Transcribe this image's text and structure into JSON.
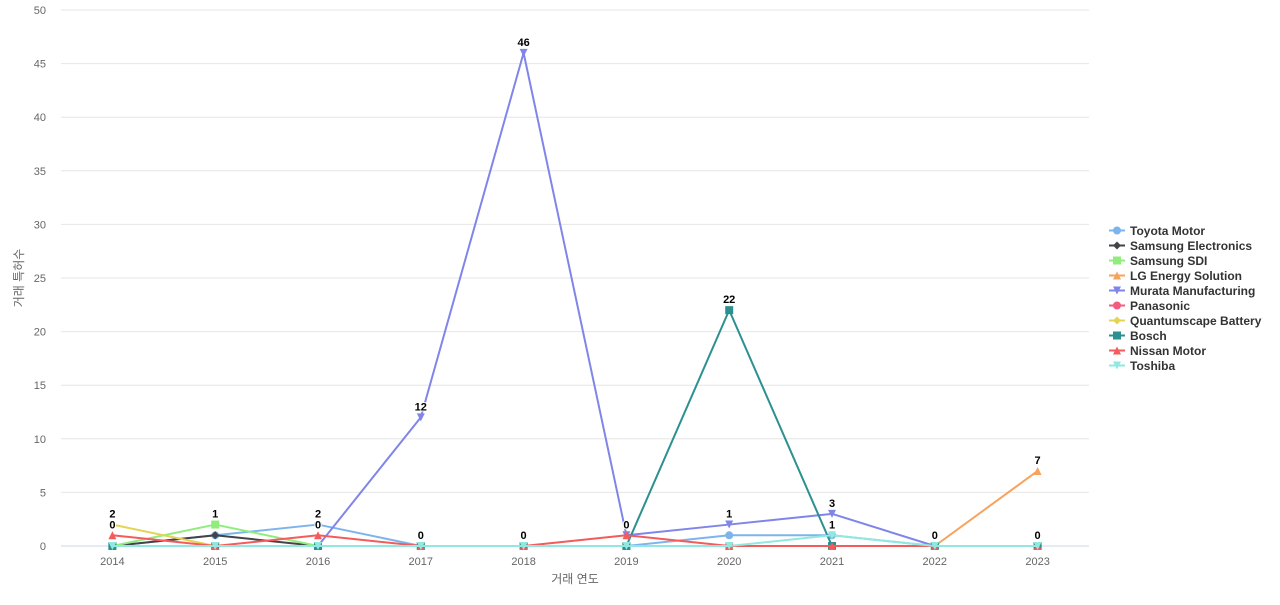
{
  "chart_data": {
    "type": "line",
    "title": "",
    "xlabel": "거래 연도",
    "ylabel": "거래 특허수",
    "x": [
      "2014",
      "2015",
      "2016",
      "2017",
      "2018",
      "2019",
      "2020",
      "2021",
      "2022",
      "2023"
    ],
    "ylim": [
      0,
      50
    ],
    "yticks": [
      0,
      5,
      10,
      15,
      20,
      25,
      30,
      35,
      40,
      45,
      50
    ],
    "grid": true,
    "legend_position": "right",
    "series": [
      {
        "name": "Toyota Motor",
        "color": "#7cb5ec",
        "marker": "circle",
        "values": [
          0,
          1,
          2,
          0,
          0,
          0,
          1,
          1,
          0,
          0
        ]
      },
      {
        "name": "Samsung Electronics",
        "color": "#434348",
        "marker": "diamond",
        "values": [
          0,
          1,
          0,
          0,
          0,
          0,
          0,
          0,
          0,
          0
        ]
      },
      {
        "name": "Samsung SDI",
        "color": "#90ed7d",
        "marker": "square",
        "values": [
          0,
          2,
          0,
          0,
          0,
          0,
          0,
          0,
          0,
          0
        ]
      },
      {
        "name": "LG Energy Solution",
        "color": "#f7a35c",
        "marker": "triangle",
        "values": [
          0,
          0,
          0,
          0,
          0,
          0,
          0,
          0,
          0,
          7
        ]
      },
      {
        "name": "Murata Manufacturing",
        "color": "#8085e9",
        "marker": "triangle-down",
        "values": [
          0,
          0,
          0,
          12,
          46,
          1,
          2,
          3,
          0,
          0
        ]
      },
      {
        "name": "Panasonic",
        "color": "#f15c80",
        "marker": "circle",
        "values": [
          0,
          0,
          0,
          0,
          0,
          0,
          0,
          0,
          0,
          0
        ]
      },
      {
        "name": "Quantumscape Battery",
        "color": "#e4d354",
        "marker": "diamond",
        "values": [
          2,
          0,
          0,
          0,
          0,
          0,
          0,
          0,
          0,
          0
        ]
      },
      {
        "name": "Bosch",
        "color": "#2b908f",
        "marker": "square",
        "values": [
          0,
          0,
          0,
          0,
          0,
          0,
          22,
          0,
          0,
          0
        ]
      },
      {
        "name": "Nissan Motor",
        "color": "#f45b5b",
        "marker": "triangle",
        "values": [
          1,
          0,
          1,
          0,
          0,
          1,
          0,
          0,
          0,
          0
        ]
      },
      {
        "name": "Toshiba",
        "color": "#91e8e1",
        "marker": "triangle-down",
        "values": [
          0,
          0,
          0,
          0,
          0,
          0,
          0,
          1,
          0,
          0
        ]
      }
    ],
    "data_labels": [
      {
        "x": "2014",
        "text": "2",
        "y": 2
      },
      {
        "x": "2014",
        "text": "0",
        "y": 1
      },
      {
        "x": "2015",
        "text": "1",
        "y": 2
      },
      {
        "x": "2016",
        "text": "2",
        "y": 2
      },
      {
        "x": "2016",
        "text": "0",
        "y": 1
      },
      {
        "x": "2017",
        "text": "12",
        "y": 12
      },
      {
        "x": "2017",
        "text": "0",
        "y": 0
      },
      {
        "x": "2018",
        "text": "46",
        "y": 46
      },
      {
        "x": "2018",
        "text": "0",
        "y": 0
      },
      {
        "x": "2019",
        "text": "0",
        "y": 1
      },
      {
        "x": "2020",
        "text": "22",
        "y": 22
      },
      {
        "x": "2020",
        "text": "1",
        "y": 2
      },
      {
        "x": "2021",
        "text": "3",
        "y": 3
      },
      {
        "x": "2021",
        "text": "1",
        "y": 1
      },
      {
        "x": "2022",
        "text": "0",
        "y": 0
      },
      {
        "x": "2023",
        "text": "7",
        "y": 7
      },
      {
        "x": "2023",
        "text": "0",
        "y": 0
      }
    ]
  }
}
